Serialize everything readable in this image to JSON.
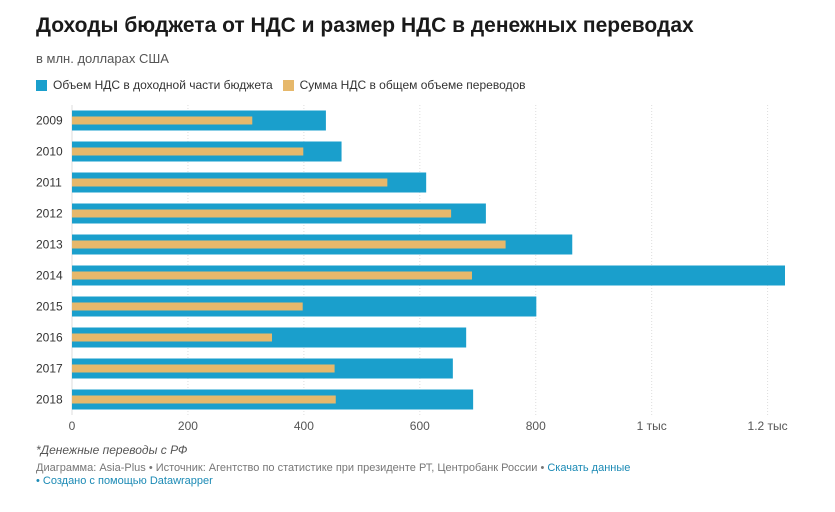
{
  "chart_data": {
    "type": "bar",
    "orientation": "horizontal",
    "title": "Доходы бюджета от НДС и размер НДС в денежных переводах",
    "subtitle": "в млн. долларах США",
    "categories": [
      "2009",
      "2010",
      "2011",
      "2012",
      "2013",
      "2014",
      "2015",
      "2016",
      "2017",
      "2018"
    ],
    "series": [
      {
        "name": "Объем НДС в доходной части бюджета",
        "color": "#1a9fcc",
        "values": [
          438,
          465,
          611,
          714,
          863,
          1230,
          801,
          680,
          657,
          692
        ]
      },
      {
        "name": "Сумма НДС в общем объеме переводов",
        "color": "#e6b86b",
        "values": [
          311,
          399,
          544,
          654,
          748,
          690,
          398,
          345,
          453,
          455
        ]
      }
    ],
    "xlim": [
      0,
      1230
    ],
    "xticks": [
      {
        "value": 0,
        "label": "0"
      },
      {
        "value": 200,
        "label": "200"
      },
      {
        "value": 400,
        "label": "400"
      },
      {
        "value": 600,
        "label": "600"
      },
      {
        "value": 800,
        "label": "800"
      },
      {
        "value": 1000,
        "label": "1 тыс"
      },
      {
        "value": 1200,
        "label": "1,2 тыс"
      }
    ],
    "grid": true,
    "legend_position": "top-left"
  },
  "footer": {
    "note": "*Денежные переводы с РФ",
    "credits_text": "Диаграмма: Asia-Plus • Источник: Агентство по статистике при президенте РТ, Центробанк России • ",
    "download_link": "Скачать данные",
    "created_with": "• Создано с помощью Datawrapper"
  }
}
